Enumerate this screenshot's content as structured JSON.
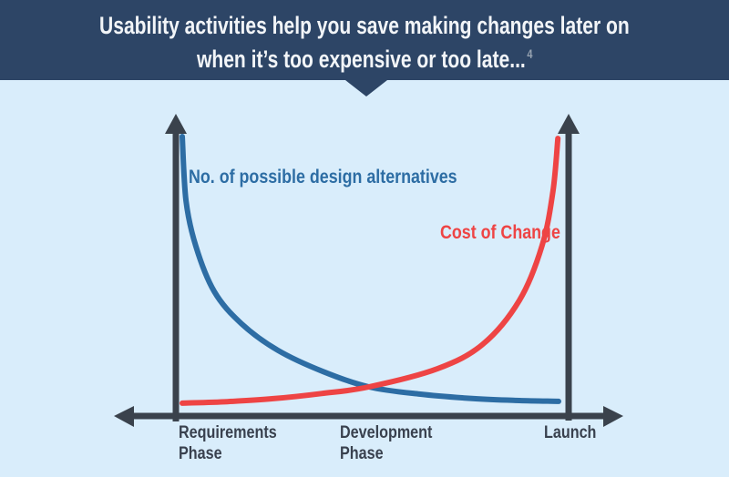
{
  "banner": {
    "title_line1": "Usability activities help you save making changes later on",
    "title_line2": "when it’s too expensive or too late...",
    "footnote_marker": "4"
  },
  "colors": {
    "banner_bg": "#2d4566",
    "page_background": "#d9edfb",
    "title_text": "#f2f5f8",
    "footnote_text": "#97a3b1",
    "axis": "#3a424c",
    "axis_label_text": "#39414e",
    "design_alternatives_blue": "#2d6da4",
    "cost_of_change_red": "#ee4444"
  },
  "chart_data": {
    "type": "line",
    "title": "",
    "xlabel": "",
    "ylabel": "",
    "grid": false,
    "legend_position": "inline-annotations",
    "axes_note": "No numeric scales shown; qualitative axes with arrowheads. x runs from Requirements Phase (left axis) to Launch (right axis). y values are relative 0-100.",
    "x_axis_labels": [
      "Requirements\nPhase",
      "Development\nPhase",
      "Launch"
    ],
    "series": [
      {
        "name": "No. of possible design alternatives",
        "color": "#2d6da4",
        "shape": "decaying curve, high at Requirements Phase, near zero at Launch",
        "points": [
          [
            0,
            100
          ],
          [
            1,
            76
          ],
          [
            3.6,
            59
          ],
          [
            8.5,
            42
          ],
          [
            15.7,
            30
          ],
          [
            25.4,
            20
          ],
          [
            37.5,
            12
          ],
          [
            49.6,
            6.3
          ],
          [
            63,
            3.6
          ],
          [
            77.5,
            1.9
          ],
          [
            89.6,
            1.2
          ],
          [
            100,
            0.9
          ]
        ]
      },
      {
        "name": "Cost of Change",
        "color": "#ee4444",
        "shape": "exponential rise, near zero at Requirements Phase, maximal at Launch",
        "points": [
          [
            0,
            0.2
          ],
          [
            12,
            0.8
          ],
          [
            24.2,
            1.9
          ],
          [
            37,
            3.8
          ],
          [
            49.6,
            6.3
          ],
          [
            67.8,
            13.1
          ],
          [
            79.9,
            22.3
          ],
          [
            89.6,
            38.7
          ],
          [
            95.6,
            59.1
          ],
          [
            98.5,
            79.5
          ],
          [
            99.8,
            99.3
          ]
        ]
      }
    ],
    "crossing_point_relative": [
      50,
      6
    ]
  }
}
